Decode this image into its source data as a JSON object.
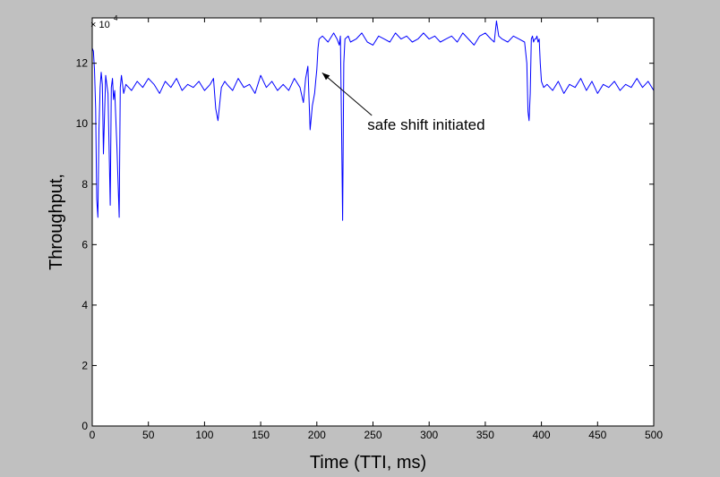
{
  "chart_data": {
    "type": "line",
    "title": "",
    "xlabel": "Time (TTI, ms)",
    "ylabel": "Throughput,",
    "xlim": [
      0,
      500
    ],
    "ylim": [
      0,
      135000
    ],
    "y_exponent_label": "× 10",
    "y_exponent_power": "4",
    "x_ticks": [
      0,
      50,
      100,
      150,
      200,
      250,
      300,
      350,
      400,
      450,
      500
    ],
    "x_tick_labels": [
      "0",
      "50",
      "100",
      "150",
      "200",
      "250",
      "300",
      "350",
      "400",
      "450",
      "500"
    ],
    "y_ticks": [
      0,
      20000,
      40000,
      60000,
      80000,
      100000,
      120000
    ],
    "y_tick_labels": [
      "0",
      "2",
      "4",
      "6",
      "8",
      "10",
      "12"
    ],
    "grid": false,
    "colors": {
      "line": "#0000ff",
      "figure_bg": "#c0c0c0",
      "axes_bg": "#ffffff",
      "text": "#000000"
    },
    "series": [
      {
        "x": [
          0,
          1,
          2,
          3,
          4,
          5,
          6,
          7,
          8,
          9,
          10,
          12,
          14,
          16,
          17,
          18,
          19,
          20,
          22,
          24,
          25,
          26,
          28,
          30,
          35,
          40,
          45,
          50,
          55,
          60,
          65,
          70,
          75,
          80,
          85,
          90,
          95,
          100,
          105,
          108,
          110,
          112,
          115,
          118,
          120,
          125,
          130,
          135,
          140,
          145,
          150,
          155,
          160,
          165,
          170,
          175,
          180,
          185,
          188,
          190,
          192,
          194,
          196,
          198,
          199,
          200,
          201,
          202,
          205,
          210,
          215,
          218,
          220,
          221,
          222,
          223,
          224,
          225,
          228,
          230,
          235,
          240,
          245,
          250,
          255,
          260,
          265,
          270,
          275,
          280,
          285,
          290,
          295,
          300,
          305,
          310,
          315,
          320,
          325,
          330,
          335,
          340,
          345,
          350,
          355,
          358,
          360,
          362,
          365,
          370,
          375,
          380,
          385,
          387,
          388,
          389,
          390,
          391,
          392,
          393,
          394,
          395,
          396,
          397,
          398,
          399,
          400,
          402,
          405,
          410,
          415,
          420,
          425,
          430,
          435,
          440,
          445,
          450,
          455,
          460,
          465,
          470,
          475,
          480,
          485,
          490,
          495,
          500
        ],
        "y": [
          125000,
          124000,
          118000,
          105000,
          75000,
          69000,
          98000,
          112000,
          117000,
          113000,
          90000,
          116000,
          110000,
          73000,
          112000,
          115000,
          108000,
          111000,
          92000,
          69000,
          112000,
          116000,
          110000,
          113000,
          111000,
          114000,
          112000,
          115000,
          113000,
          110000,
          114000,
          112000,
          115000,
          111000,
          113000,
          112000,
          114000,
          111000,
          113000,
          115000,
          105000,
          101000,
          112000,
          114000,
          113000,
          111000,
          115000,
          112000,
          113000,
          110000,
          116000,
          112000,
          114000,
          111000,
          113000,
          111000,
          115000,
          112000,
          107000,
          115000,
          119000,
          98000,
          106000,
          110000,
          114000,
          118000,
          125000,
          128000,
          129000,
          127000,
          130000,
          128000,
          126000,
          129000,
          99000,
          68000,
          120000,
          128000,
          129000,
          127000,
          128000,
          130000,
          127000,
          126000,
          129000,
          128000,
          127000,
          130000,
          128000,
          129000,
          127000,
          128000,
          130000,
          128000,
          129000,
          127000,
          128000,
          129000,
          127000,
          130000,
          128000,
          126000,
          129000,
          130000,
          128000,
          127000,
          134000,
          129000,
          128000,
          127000,
          129000,
          128000,
          127000,
          120000,
          104000,
          101000,
          110000,
          128000,
          129000,
          127000,
          128000,
          128000,
          129000,
          127000,
          128000,
          120000,
          114000,
          112000,
          113000,
          111000,
          114000,
          110000,
          113000,
          112000,
          115000,
          111000,
          114000,
          110000,
          113000,
          112000,
          114000,
          111000,
          113000,
          112000,
          115000,
          112000,
          114000,
          111000
        ]
      }
    ],
    "annotations": [
      {
        "text": "safe shift initiated",
        "x_data": 245,
        "y_data": 98000,
        "arrow_to": [
          200,
          118000
        ]
      }
    ]
  }
}
